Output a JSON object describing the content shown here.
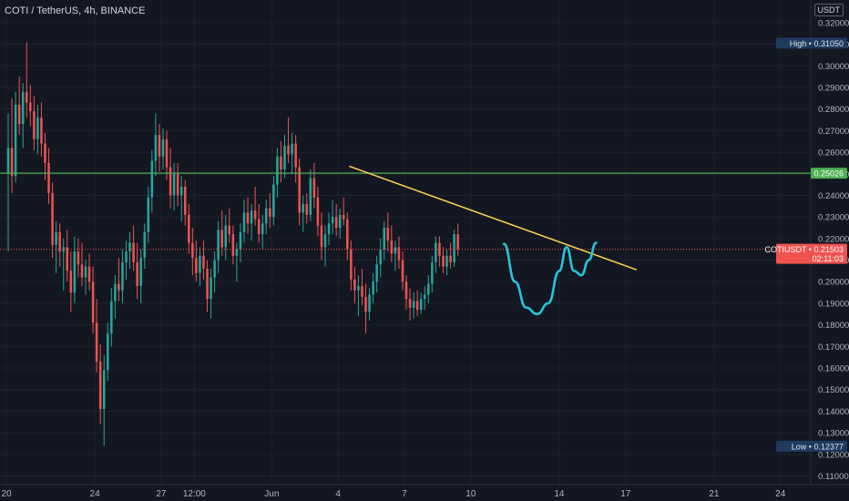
{
  "header": {
    "symbol_title": "COTI / TetherUS, 4h, BINANCE",
    "currency_button": "USDT"
  },
  "colors": {
    "background": "#131722",
    "up": "#26a69a",
    "down": "#ef5350",
    "grid": "#1e222d",
    "axis_text": "#b2b5be",
    "resistance": "#4caf50",
    "trendline": "#ffd54f",
    "pattern": "#26c6da",
    "price_line": "#ef5350"
  },
  "chart_data": {
    "type": "candlestick",
    "symbol": "COTIUSDT",
    "interval": "4h",
    "exchange": "BINANCE",
    "ylim": [
      0.106,
      0.3305
    ],
    "xlim_dates": [
      "2021-05-20",
      "2021-06-25"
    ],
    "y_ticks": [
      "0.32000",
      "0.31000",
      "0.30000",
      "0.29000",
      "0.28000",
      "0.27000",
      "0.26000",
      "0.25000",
      "0.24000",
      "0.23000",
      "0.22000",
      "0.21000",
      "0.20000",
      "0.19000",
      "0.18000",
      "0.17000",
      "0.16000",
      "0.15000",
      "0.14000",
      "0.13000",
      "0.12000",
      "0.11000"
    ],
    "x_ticks": [
      {
        "label": "20",
        "date": "2021-05-20"
      },
      {
        "label": "24",
        "date": "2021-05-24"
      },
      {
        "label": "27",
        "date": "2021-05-27"
      },
      {
        "label": "12:00",
        "date": "2021-05-28T12:00"
      },
      {
        "label": "Jun",
        "date": "2021-06-01"
      },
      {
        "label": "4",
        "date": "2021-06-04"
      },
      {
        "label": "7",
        "date": "2021-06-07"
      },
      {
        "label": "10",
        "date": "2021-06-10"
      },
      {
        "label": "14",
        "date": "2021-06-14"
      },
      {
        "label": "17",
        "date": "2021-06-17"
      },
      {
        "label": "21",
        "date": "2021-06-21"
      },
      {
        "label": "24",
        "date": "2021-06-24"
      }
    ],
    "high": {
      "label": "High",
      "value": "0.31050"
    },
    "low": {
      "label": "Low",
      "value": "0.12377"
    },
    "resistance_level": {
      "value": "0.25026"
    },
    "current_price": {
      "symbol": "COTIUSDT",
      "value": "0.21503",
      "countdown": "02:11:03"
    },
    "trendline": {
      "start": {
        "date": "2021-06-04T12:00",
        "value": 0.2535
      },
      "end": {
        "date": "2021-06-17T12:00",
        "value": 0.2055
      }
    },
    "pattern_curve": {
      "type": "cup and handle",
      "points": [
        {
          "date": "2021-06-11T12:00",
          "value": 0.2175
        },
        {
          "date": "2021-06-12T00:00",
          "value": 0.2
        },
        {
          "date": "2021-06-12T12:00",
          "value": 0.188
        },
        {
          "date": "2021-06-13T00:00",
          "value": 0.185
        },
        {
          "date": "2021-06-13T12:00",
          "value": 0.19
        },
        {
          "date": "2021-06-14T00:00",
          "value": 0.205
        },
        {
          "date": "2021-06-14T08:00",
          "value": 0.216
        },
        {
          "date": "2021-06-14T16:00",
          "value": 0.205
        },
        {
          "date": "2021-06-15T00:00",
          "value": 0.203
        },
        {
          "date": "2021-06-15T08:00",
          "value": 0.21
        },
        {
          "date": "2021-06-15T16:00",
          "value": 0.218
        }
      ]
    },
    "candles": [
      {
        "o": 0.25,
        "h": 0.278,
        "l": 0.214,
        "c": 0.262
      },
      {
        "o": 0.262,
        "h": 0.285,
        "l": 0.241,
        "c": 0.249
      },
      {
        "o": 0.249,
        "h": 0.288,
        "l": 0.246,
        "c": 0.282
      },
      {
        "o": 0.282,
        "h": 0.295,
        "l": 0.268,
        "c": 0.273
      },
      {
        "o": 0.273,
        "h": 0.292,
        "l": 0.262,
        "c": 0.288
      },
      {
        "o": 0.288,
        "h": 0.311,
        "l": 0.276,
        "c": 0.283
      },
      {
        "o": 0.283,
        "h": 0.291,
        "l": 0.272,
        "c": 0.279
      },
      {
        "o": 0.279,
        "h": 0.286,
        "l": 0.261,
        "c": 0.266
      },
      {
        "o": 0.266,
        "h": 0.282,
        "l": 0.259,
        "c": 0.276
      },
      {
        "o": 0.276,
        "h": 0.283,
        "l": 0.258,
        "c": 0.264
      },
      {
        "o": 0.264,
        "h": 0.269,
        "l": 0.247,
        "c": 0.255
      },
      {
        "o": 0.255,
        "h": 0.262,
        "l": 0.236,
        "c": 0.241
      },
      {
        "o": 0.241,
        "h": 0.246,
        "l": 0.211,
        "c": 0.217
      },
      {
        "o": 0.217,
        "h": 0.228,
        "l": 0.204,
        "c": 0.223
      },
      {
        "o": 0.223,
        "h": 0.227,
        "l": 0.207,
        "c": 0.214
      },
      {
        "o": 0.214,
        "h": 0.22,
        "l": 0.196,
        "c": 0.216
      },
      {
        "o": 0.216,
        "h": 0.224,
        "l": 0.2,
        "c": 0.205
      },
      {
        "o": 0.205,
        "h": 0.214,
        "l": 0.186,
        "c": 0.195
      },
      {
        "o": 0.195,
        "h": 0.221,
        "l": 0.19,
        "c": 0.214
      },
      {
        "o": 0.214,
        "h": 0.22,
        "l": 0.202,
        "c": 0.208
      },
      {
        "o": 0.208,
        "h": 0.218,
        "l": 0.198,
        "c": 0.202
      },
      {
        "o": 0.202,
        "h": 0.21,
        "l": 0.194,
        "c": 0.207
      },
      {
        "o": 0.207,
        "h": 0.213,
        "l": 0.196,
        "c": 0.2
      },
      {
        "o": 0.2,
        "h": 0.207,
        "l": 0.176,
        "c": 0.181
      },
      {
        "o": 0.181,
        "h": 0.192,
        "l": 0.158,
        "c": 0.163
      },
      {
        "o": 0.163,
        "h": 0.171,
        "l": 0.134,
        "c": 0.141
      },
      {
        "o": 0.141,
        "h": 0.166,
        "l": 0.124,
        "c": 0.159
      },
      {
        "o": 0.159,
        "h": 0.181,
        "l": 0.154,
        "c": 0.176
      },
      {
        "o": 0.176,
        "h": 0.197,
        "l": 0.17,
        "c": 0.191
      },
      {
        "o": 0.191,
        "h": 0.203,
        "l": 0.183,
        "c": 0.199
      },
      {
        "o": 0.199,
        "h": 0.211,
        "l": 0.191,
        "c": 0.196
      },
      {
        "o": 0.196,
        "h": 0.215,
        "l": 0.19,
        "c": 0.209
      },
      {
        "o": 0.209,
        "h": 0.219,
        "l": 0.201,
        "c": 0.214
      },
      {
        "o": 0.214,
        "h": 0.223,
        "l": 0.206,
        "c": 0.218
      },
      {
        "o": 0.218,
        "h": 0.226,
        "l": 0.205,
        "c": 0.209
      },
      {
        "o": 0.209,
        "h": 0.218,
        "l": 0.192,
        "c": 0.198
      },
      {
        "o": 0.198,
        "h": 0.215,
        "l": 0.19,
        "c": 0.211
      },
      {
        "o": 0.211,
        "h": 0.227,
        "l": 0.206,
        "c": 0.223
      },
      {
        "o": 0.223,
        "h": 0.244,
        "l": 0.218,
        "c": 0.239
      },
      {
        "o": 0.239,
        "h": 0.261,
        "l": 0.232,
        "c": 0.256
      },
      {
        "o": 0.256,
        "h": 0.278,
        "l": 0.249,
        "c": 0.268
      },
      {
        "o": 0.268,
        "h": 0.273,
        "l": 0.251,
        "c": 0.258
      },
      {
        "o": 0.258,
        "h": 0.271,
        "l": 0.252,
        "c": 0.266
      },
      {
        "o": 0.266,
        "h": 0.27,
        "l": 0.247,
        "c": 0.253
      },
      {
        "o": 0.253,
        "h": 0.262,
        "l": 0.234,
        "c": 0.24
      },
      {
        "o": 0.24,
        "h": 0.255,
        "l": 0.233,
        "c": 0.25
      },
      {
        "o": 0.25,
        "h": 0.255,
        "l": 0.235,
        "c": 0.24
      },
      {
        "o": 0.24,
        "h": 0.249,
        "l": 0.228,
        "c": 0.244
      },
      {
        "o": 0.244,
        "h": 0.247,
        "l": 0.226,
        "c": 0.231
      },
      {
        "o": 0.231,
        "h": 0.236,
        "l": 0.213,
        "c": 0.218
      },
      {
        "o": 0.218,
        "h": 0.225,
        "l": 0.203,
        "c": 0.211
      },
      {
        "o": 0.211,
        "h": 0.219,
        "l": 0.2,
        "c": 0.204
      },
      {
        "o": 0.204,
        "h": 0.216,
        "l": 0.198,
        "c": 0.212
      },
      {
        "o": 0.212,
        "h": 0.219,
        "l": 0.201,
        "c": 0.206
      },
      {
        "o": 0.206,
        "h": 0.21,
        "l": 0.186,
        "c": 0.192
      },
      {
        "o": 0.192,
        "h": 0.206,
        "l": 0.183,
        "c": 0.202
      },
      {
        "o": 0.202,
        "h": 0.214,
        "l": 0.195,
        "c": 0.21
      },
      {
        "o": 0.21,
        "h": 0.228,
        "l": 0.204,
        "c": 0.224
      },
      {
        "o": 0.224,
        "h": 0.233,
        "l": 0.212,
        "c": 0.216
      },
      {
        "o": 0.216,
        "h": 0.231,
        "l": 0.21,
        "c": 0.226
      },
      {
        "o": 0.226,
        "h": 0.234,
        "l": 0.218,
        "c": 0.222
      },
      {
        "o": 0.222,
        "h": 0.226,
        "l": 0.208,
        "c": 0.212
      },
      {
        "o": 0.212,
        "h": 0.218,
        "l": 0.2,
        "c": 0.215
      },
      {
        "o": 0.215,
        "h": 0.227,
        "l": 0.209,
        "c": 0.223
      },
      {
        "o": 0.223,
        "h": 0.238,
        "l": 0.218,
        "c": 0.232
      },
      {
        "o": 0.232,
        "h": 0.239,
        "l": 0.222,
        "c": 0.227
      },
      {
        "o": 0.227,
        "h": 0.236,
        "l": 0.219,
        "c": 0.233
      },
      {
        "o": 0.233,
        "h": 0.244,
        "l": 0.226,
        "c": 0.229
      },
      {
        "o": 0.229,
        "h": 0.236,
        "l": 0.218,
        "c": 0.222
      },
      {
        "o": 0.222,
        "h": 0.231,
        "l": 0.215,
        "c": 0.227
      },
      {
        "o": 0.227,
        "h": 0.238,
        "l": 0.222,
        "c": 0.234
      },
      {
        "o": 0.234,
        "h": 0.241,
        "l": 0.225,
        "c": 0.23
      },
      {
        "o": 0.23,
        "h": 0.249,
        "l": 0.226,
        "c": 0.245
      },
      {
        "o": 0.245,
        "h": 0.262,
        "l": 0.239,
        "c": 0.258
      },
      {
        "o": 0.258,
        "h": 0.265,
        "l": 0.246,
        "c": 0.252
      },
      {
        "o": 0.252,
        "h": 0.268,
        "l": 0.248,
        "c": 0.263
      },
      {
        "o": 0.263,
        "h": 0.276,
        "l": 0.255,
        "c": 0.259
      },
      {
        "o": 0.259,
        "h": 0.269,
        "l": 0.25,
        "c": 0.264
      },
      {
        "o": 0.264,
        "h": 0.268,
        "l": 0.246,
        "c": 0.253
      },
      {
        "o": 0.253,
        "h": 0.257,
        "l": 0.226,
        "c": 0.232
      },
      {
        "o": 0.232,
        "h": 0.24,
        "l": 0.223,
        "c": 0.236
      },
      {
        "o": 0.236,
        "h": 0.241,
        "l": 0.227,
        "c": 0.231
      },
      {
        "o": 0.231,
        "h": 0.252,
        "l": 0.228,
        "c": 0.248
      },
      {
        "o": 0.248,
        "h": 0.255,
        "l": 0.234,
        "c": 0.239
      },
      {
        "o": 0.239,
        "h": 0.244,
        "l": 0.221,
        "c": 0.226
      },
      {
        "o": 0.226,
        "h": 0.232,
        "l": 0.21,
        "c": 0.216
      },
      {
        "o": 0.216,
        "h": 0.226,
        "l": 0.207,
        "c": 0.222
      },
      {
        "o": 0.222,
        "h": 0.232,
        "l": 0.217,
        "c": 0.227
      },
      {
        "o": 0.227,
        "h": 0.238,
        "l": 0.222,
        "c": 0.23
      },
      {
        "o": 0.23,
        "h": 0.236,
        "l": 0.221,
        "c": 0.225
      },
      {
        "o": 0.225,
        "h": 0.234,
        "l": 0.22,
        "c": 0.231
      },
      {
        "o": 0.231,
        "h": 0.239,
        "l": 0.226,
        "c": 0.229
      },
      {
        "o": 0.229,
        "h": 0.232,
        "l": 0.21,
        "c": 0.215
      },
      {
        "o": 0.215,
        "h": 0.219,
        "l": 0.196,
        "c": 0.201
      },
      {
        "o": 0.201,
        "h": 0.207,
        "l": 0.19,
        "c": 0.196
      },
      {
        "o": 0.196,
        "h": 0.203,
        "l": 0.184,
        "c": 0.198
      },
      {
        "o": 0.198,
        "h": 0.206,
        "l": 0.189,
        "c": 0.193
      },
      {
        "o": 0.193,
        "h": 0.199,
        "l": 0.176,
        "c": 0.186
      },
      {
        "o": 0.186,
        "h": 0.197,
        "l": 0.182,
        "c": 0.194
      },
      {
        "o": 0.194,
        "h": 0.204,
        "l": 0.19,
        "c": 0.2
      },
      {
        "o": 0.2,
        "h": 0.212,
        "l": 0.195,
        "c": 0.208
      },
      {
        "o": 0.208,
        "h": 0.22,
        "l": 0.202,
        "c": 0.215
      },
      {
        "o": 0.215,
        "h": 0.228,
        "l": 0.21,
        "c": 0.225
      },
      {
        "o": 0.225,
        "h": 0.232,
        "l": 0.214,
        "c": 0.219
      },
      {
        "o": 0.219,
        "h": 0.226,
        "l": 0.209,
        "c": 0.213
      },
      {
        "o": 0.213,
        "h": 0.219,
        "l": 0.205,
        "c": 0.216
      },
      {
        "o": 0.216,
        "h": 0.221,
        "l": 0.206,
        "c": 0.21
      },
      {
        "o": 0.21,
        "h": 0.214,
        "l": 0.196,
        "c": 0.2
      },
      {
        "o": 0.2,
        "h": 0.203,
        "l": 0.187,
        "c": 0.192
      },
      {
        "o": 0.192,
        "h": 0.197,
        "l": 0.182,
        "c": 0.188
      },
      {
        "o": 0.188,
        "h": 0.195,
        "l": 0.183,
        "c": 0.191
      },
      {
        "o": 0.191,
        "h": 0.196,
        "l": 0.184,
        "c": 0.187
      },
      {
        "o": 0.187,
        "h": 0.195,
        "l": 0.185,
        "c": 0.192
      },
      {
        "o": 0.192,
        "h": 0.198,
        "l": 0.187,
        "c": 0.194
      },
      {
        "o": 0.194,
        "h": 0.203,
        "l": 0.19,
        "c": 0.199
      },
      {
        "o": 0.199,
        "h": 0.212,
        "l": 0.195,
        "c": 0.209
      },
      {
        "o": 0.209,
        "h": 0.221,
        "l": 0.204,
        "c": 0.218
      },
      {
        "o": 0.218,
        "h": 0.221,
        "l": 0.207,
        "c": 0.212
      },
      {
        "o": 0.212,
        "h": 0.216,
        "l": 0.204,
        "c": 0.207
      },
      {
        "o": 0.207,
        "h": 0.215,
        "l": 0.203,
        "c": 0.212
      },
      {
        "o": 0.212,
        "h": 0.218,
        "l": 0.206,
        "c": 0.209
      },
      {
        "o": 0.209,
        "h": 0.224,
        "l": 0.207,
        "c": 0.222
      },
      {
        "o": 0.222,
        "h": 0.227,
        "l": 0.212,
        "c": 0.215
      }
    ]
  }
}
